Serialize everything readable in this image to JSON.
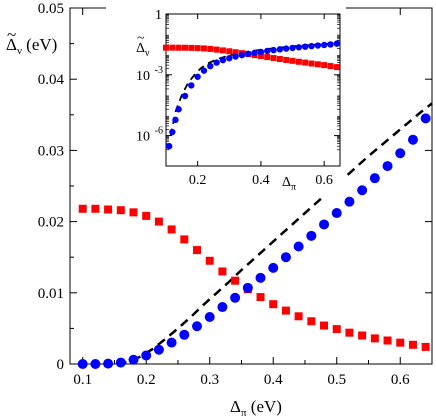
{
  "chart_data": [
    {
      "type": "scatter",
      "title": "",
      "xlabel": "Δπ (eV)",
      "ylabel": "Δ̃ν (eV)",
      "xlim": [
        0.08,
        0.65
      ],
      "ylim": [
        0,
        0.05
      ],
      "xticks": [
        "0.1",
        "0.2",
        "0.3",
        "0.4",
        "0.5",
        "0.6"
      ],
      "yticks": [
        "0",
        "0.01",
        "0.02",
        "0.03",
        "0.04",
        "0.05"
      ],
      "colors": {
        "red": "#ff0000",
        "blue": "#0000ff",
        "black": "#000000"
      },
      "series": [
        {
          "marker": "square",
          "color": "#ff0000",
          "x": [
            0.1,
            0.12,
            0.14,
            0.16,
            0.18,
            0.2,
            0.22,
            0.24,
            0.26,
            0.28,
            0.3,
            0.32,
            0.34,
            0.36,
            0.38,
            0.4,
            0.42,
            0.44,
            0.46,
            0.48,
            0.5,
            0.52,
            0.54,
            0.56,
            0.58,
            0.6,
            0.62,
            0.64
          ],
          "y": [
            0.0218,
            0.0218,
            0.0217,
            0.0216,
            0.0213,
            0.0208,
            0.02,
            0.0189,
            0.0175,
            0.016,
            0.0145,
            0.013,
            0.0117,
            0.0105,
            0.0094,
            0.0084,
            0.0075,
            0.0067,
            0.006,
            0.0054,
            0.0049,
            0.0044,
            0.004,
            0.0036,
            0.0033,
            0.003,
            0.0027,
            0.0024
          ]
        },
        {
          "marker": "circle",
          "color": "#0000ff",
          "x": [
            0.1,
            0.12,
            0.14,
            0.16,
            0.18,
            0.2,
            0.22,
            0.24,
            0.26,
            0.28,
            0.3,
            0.32,
            0.34,
            0.36,
            0.38,
            0.4,
            0.42,
            0.44,
            0.46,
            0.48,
            0.5,
            0.52,
            0.54,
            0.56,
            0.58,
            0.6,
            0.62,
            0.64
          ],
          "y": [
            0.0,
            0.0,
            5e-05,
            0.0002,
            0.0006,
            0.0012,
            0.002,
            0.003,
            0.0041,
            0.0053,
            0.0066,
            0.008,
            0.0093,
            0.0107,
            0.0121,
            0.0135,
            0.015,
            0.0165,
            0.018,
            0.0196,
            0.0212,
            0.0228,
            0.0244,
            0.0261,
            0.0278,
            0.0296,
            0.0315,
            0.0345
          ]
        },
        {
          "marker": "dashed-line",
          "color": "#000000",
          "x": [
            0.155,
            0.17,
            0.19,
            0.21,
            0.23,
            0.25,
            0.27,
            0.29,
            0.31,
            0.33,
            0.35,
            0.37,
            0.39,
            0.41,
            0.43,
            0.45,
            0.47,
            0.49,
            0.51,
            0.53,
            0.55,
            0.57,
            0.59,
            0.61,
            0.63,
            0.65
          ],
          "y": [
            0.0,
            0.0003,
            0.001,
            0.0021,
            0.0035,
            0.005,
            0.0066,
            0.0083,
            0.0099,
            0.0115,
            0.0132,
            0.0148,
            0.0164,
            0.018,
            0.0196,
            0.0212,
            0.0228,
            0.0244,
            0.026,
            0.0276,
            0.0292,
            0.0307,
            0.0322,
            0.0337,
            0.0352,
            0.0366
          ]
        }
      ]
    },
    {
      "type": "scatter",
      "title": "",
      "xlabel": "Δπ",
      "ylabel": "Δ̃ν",
      "xlim": [
        0.1,
        0.65
      ],
      "ylim_log10": [
        -7.5,
        0
      ],
      "xticks": [
        "0.2",
        "0.4",
        "0.6"
      ],
      "yticks": [
        {
          "base": "10",
          "exp": "-6"
        },
        {
          "base": "10",
          "exp": "-3"
        },
        {
          "base": "1",
          "exp": ""
        }
      ],
      "series": [
        {
          "marker": "square",
          "color": "#ff0000",
          "x": [
            0.1,
            0.12,
            0.14,
            0.16,
            0.18,
            0.2,
            0.22,
            0.24,
            0.26,
            0.28,
            0.3,
            0.32,
            0.34,
            0.36,
            0.38,
            0.4,
            0.42,
            0.44,
            0.46,
            0.48,
            0.5,
            0.52,
            0.54,
            0.56,
            0.58,
            0.6,
            0.62,
            0.64
          ],
          "y": [
            0.0218,
            0.0218,
            0.0217,
            0.0216,
            0.0213,
            0.0208,
            0.02,
            0.0189,
            0.0175,
            0.016,
            0.0145,
            0.013,
            0.0117,
            0.0105,
            0.0094,
            0.0084,
            0.0075,
            0.0067,
            0.006,
            0.0054,
            0.0049,
            0.0044,
            0.004,
            0.0036,
            0.0033,
            0.003,
            0.0027,
            0.0024
          ]
        },
        {
          "marker": "circle",
          "color": "#0000ff",
          "x": [
            0.11,
            0.12,
            0.13,
            0.14,
            0.16,
            0.18,
            0.2,
            0.22,
            0.24,
            0.26,
            0.28,
            0.3,
            0.32,
            0.34,
            0.36,
            0.38,
            0.4,
            0.42,
            0.44,
            0.46,
            0.48,
            0.5,
            0.52,
            0.54,
            0.56,
            0.58,
            0.6,
            0.62,
            0.64
          ],
          "y": [
            3e-07,
            1.5e-06,
            6e-06,
            2e-05,
            9e-05,
            0.0003,
            0.0008,
            0.0016,
            0.0027,
            0.004,
            0.0053,
            0.0066,
            0.008,
            0.0093,
            0.0107,
            0.0121,
            0.0135,
            0.015,
            0.0165,
            0.018,
            0.0196,
            0.0212,
            0.0228,
            0.0244,
            0.0261,
            0.0278,
            0.0296,
            0.0315,
            0.0345
          ]
        },
        {
          "marker": "dashed-line",
          "color": "#000000",
          "x": [
            0.115,
            0.13,
            0.15,
            0.17,
            0.19,
            0.21,
            0.23,
            0.26,
            0.3,
            0.35,
            0.4,
            0.45,
            0.5,
            0.55,
            0.6,
            0.65
          ],
          "y": [
            1e-06,
            1.5e-05,
            0.0001,
            0.0004,
            0.001,
            0.0021,
            0.0035,
            0.0058,
            0.0091,
            0.0132,
            0.0172,
            0.0212,
            0.0252,
            0.0292,
            0.033,
            0.0366
          ]
        }
      ]
    }
  ]
}
